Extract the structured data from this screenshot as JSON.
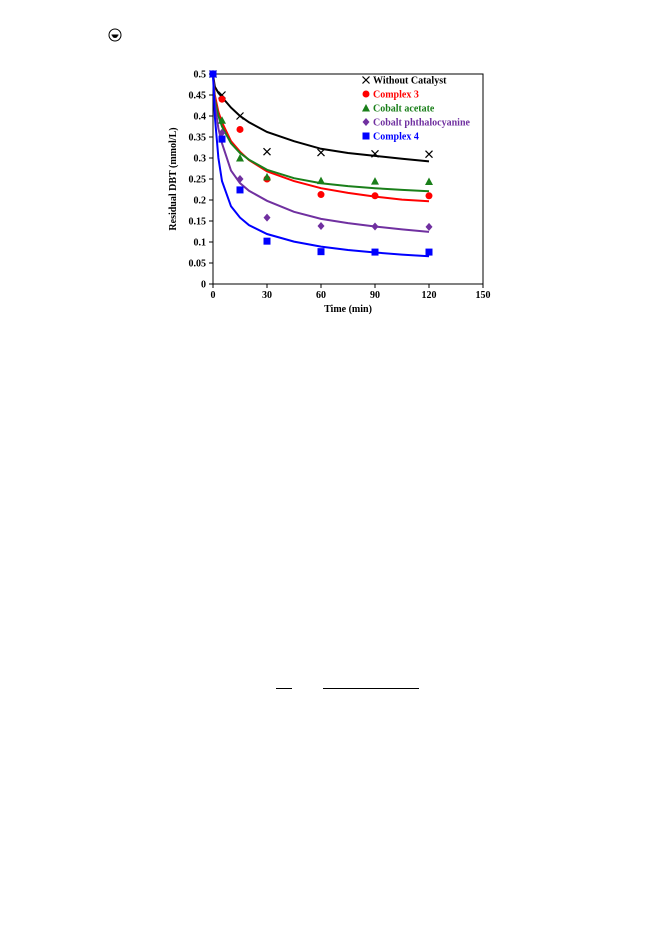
{
  "page": {
    "icon": "circled-plus-icon"
  },
  "chart_data": {
    "type": "scatter",
    "xlabel": "Time (min)",
    "ylabel": "Residual DBT (mmol/L)",
    "xlim": [
      0,
      150
    ],
    "ylim": [
      0,
      0.5
    ],
    "xticks": [
      "0",
      "30",
      "60",
      "90",
      "120",
      "150"
    ],
    "yticks": [
      "0",
      "0.05",
      "0.1",
      "0.15",
      "0.2",
      "0.25",
      "0.3",
      "0.35",
      "0.4",
      "0.45",
      "0.5"
    ],
    "grid": false,
    "legend_position": "top-right",
    "series": [
      {
        "name": "Without Catalyst",
        "color": "#000000",
        "marker": "x",
        "points": [
          [
            0,
            0.5
          ],
          [
            5,
            0.45
          ],
          [
            15,
            0.4
          ],
          [
            30,
            0.315
          ],
          [
            60,
            0.313
          ],
          [
            90,
            0.31
          ],
          [
            120,
            0.309
          ]
        ],
        "fit": [
          [
            0,
            0.5
          ],
          [
            1,
            0.47
          ],
          [
            3,
            0.455
          ],
          [
            5,
            0.445
          ],
          [
            10,
            0.42
          ],
          [
            15,
            0.4
          ],
          [
            20,
            0.385
          ],
          [
            30,
            0.362
          ],
          [
            45,
            0.34
          ],
          [
            60,
            0.322
          ],
          [
            75,
            0.312
          ],
          [
            90,
            0.305
          ],
          [
            105,
            0.298
          ],
          [
            120,
            0.292
          ]
        ]
      },
      {
        "name": "Complex 3",
        "color": "#ff0000",
        "marker": "circle",
        "points": [
          [
            0,
            0.5
          ],
          [
            5,
            0.44
          ],
          [
            15,
            0.368
          ],
          [
            30,
            0.25
          ],
          [
            60,
            0.213
          ],
          [
            90,
            0.21
          ],
          [
            120,
            0.21
          ]
        ],
        "fit": [
          [
            0,
            0.5
          ],
          [
            1,
            0.45
          ],
          [
            3,
            0.41
          ],
          [
            5,
            0.385
          ],
          [
            10,
            0.34
          ],
          [
            15,
            0.315
          ],
          [
            20,
            0.295
          ],
          [
            30,
            0.268
          ],
          [
            45,
            0.245
          ],
          [
            60,
            0.228
          ],
          [
            75,
            0.217
          ],
          [
            90,
            0.208
          ],
          [
            105,
            0.201
          ],
          [
            120,
            0.197
          ]
        ]
      },
      {
        "name": "Cobalt acetate",
        "color": "#1a7f1a",
        "marker": "triangle",
        "points": [
          [
            0,
            0.5
          ],
          [
            5,
            0.39
          ],
          [
            15,
            0.3
          ],
          [
            30,
            0.255
          ],
          [
            60,
            0.246
          ],
          [
            90,
            0.245
          ],
          [
            120,
            0.244
          ]
        ],
        "fit": [
          [
            0,
            0.5
          ],
          [
            1,
            0.44
          ],
          [
            3,
            0.4
          ],
          [
            5,
            0.375
          ],
          [
            10,
            0.335
          ],
          [
            15,
            0.312
          ],
          [
            20,
            0.296
          ],
          [
            30,
            0.272
          ],
          [
            45,
            0.252
          ],
          [
            60,
            0.24
          ],
          [
            75,
            0.233
          ],
          [
            90,
            0.228
          ],
          [
            105,
            0.224
          ],
          [
            120,
            0.221
          ]
        ]
      },
      {
        "name": "Cobalt phthalocyanine",
        "color": "#7030a0",
        "marker": "diamond",
        "points": [
          [
            0,
            0.5
          ],
          [
            5,
            0.36
          ],
          [
            15,
            0.25
          ],
          [
            30,
            0.158
          ],
          [
            60,
            0.138
          ],
          [
            90,
            0.137
          ],
          [
            120,
            0.136
          ]
        ],
        "fit": [
          [
            0,
            0.5
          ],
          [
            1,
            0.43
          ],
          [
            3,
            0.37
          ],
          [
            5,
            0.335
          ],
          [
            10,
            0.27
          ],
          [
            15,
            0.24
          ],
          [
            20,
            0.222
          ],
          [
            30,
            0.198
          ],
          [
            45,
            0.172
          ],
          [
            60,
            0.155
          ],
          [
            75,
            0.145
          ],
          [
            90,
            0.137
          ],
          [
            105,
            0.13
          ],
          [
            120,
            0.124
          ]
        ]
      },
      {
        "name": "Complex 4",
        "color": "#0000ff",
        "marker": "square",
        "points": [
          [
            0,
            0.5
          ],
          [
            5,
            0.345
          ],
          [
            15,
            0.224
          ],
          [
            30,
            0.102
          ],
          [
            60,
            0.077
          ],
          [
            90,
            0.076
          ],
          [
            120,
            0.076
          ]
        ],
        "fit": [
          [
            0,
            0.5
          ],
          [
            1,
            0.4
          ],
          [
            3,
            0.3
          ],
          [
            5,
            0.245
          ],
          [
            10,
            0.185
          ],
          [
            15,
            0.158
          ],
          [
            20,
            0.14
          ],
          [
            30,
            0.119
          ],
          [
            45,
            0.101
          ],
          [
            60,
            0.089
          ],
          [
            75,
            0.081
          ],
          [
            90,
            0.075
          ],
          [
            105,
            0.07
          ],
          [
            120,
            0.066
          ]
        ]
      }
    ]
  }
}
